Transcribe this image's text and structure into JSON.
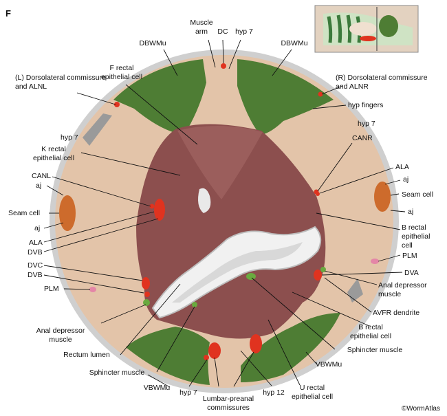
{
  "panel_letter": "F",
  "credit": "©WormAtlas",
  "colors": {
    "hypodermis": "#e3c4a9",
    "muscle": "#4e7d34",
    "rectal_epithelium": "#8c4f4e",
    "neuron": "#e0331f",
    "seam_cell": "#cd6b2c",
    "cuticle": "#bcbcbc",
    "lumen": "#f1f1f1",
    "plm": "#e486a7"
  },
  "labels": {
    "muscle_arm": [
      "Muscle",
      "arm"
    ],
    "dc": "DC",
    "hyp7_top": "hyp 7",
    "dbwmu_left": "DBWMu",
    "dbwmu_right": "DBWMu",
    "f_rectal": [
      "F rectal",
      "epithelial cell"
    ],
    "l_dorsolateral": [
      "(L) Dorsolateral commissure",
      "and ALNL"
    ],
    "r_dorsolateral": [
      "(R) Dorsolateral commissure",
      "and ALNR"
    ],
    "hyp_fingers": "hyp fingers",
    "hyp7_left": "hyp 7",
    "hyp7_right": "hyp 7",
    "k_rectal": [
      "K rectal",
      "epithelial cell"
    ],
    "canr": "CANR",
    "canl": "CANL",
    "ala_right": "ALA",
    "aj_right_top": "aj",
    "aj_left_top": "aj",
    "seam_right": "Seam cell",
    "seam_left": "Seam cell",
    "aj_right_bottom": "aj",
    "aj_left_bottom": "aj",
    "ala_left": "ALA",
    "dvb_top": "DVB",
    "b_rectal_right": [
      "B rectal",
      "epithelial",
      "cell"
    ],
    "plm_right": "PLM",
    "dvc": "DVC",
    "dva": "DVA",
    "dvb_bottom": "DVB",
    "plm_left": "PLM",
    "anal_dep_right": [
      "Anal depressor",
      "muscle"
    ],
    "avfr": "AVFR dendrite",
    "anal_dep_left": [
      "Anal depressor",
      "muscle"
    ],
    "b_rectal_bottom": [
      "B rectal",
      "epithelial cell"
    ],
    "rectum_lumen": "Rectum lumen",
    "sphincter_right": "Sphincter muscle",
    "vbwmu_right": "VBWMu",
    "sphincter_left": "Sphincter muscle",
    "vbwmu_left": "VBWMu",
    "hyp7_bottom": "hyp 7",
    "hyp12": "hyp 12",
    "u_rectal": [
      "U rectal",
      "epithelial cell"
    ],
    "lumbar": [
      "Lumbar-preanal",
      "commissures"
    ]
  }
}
